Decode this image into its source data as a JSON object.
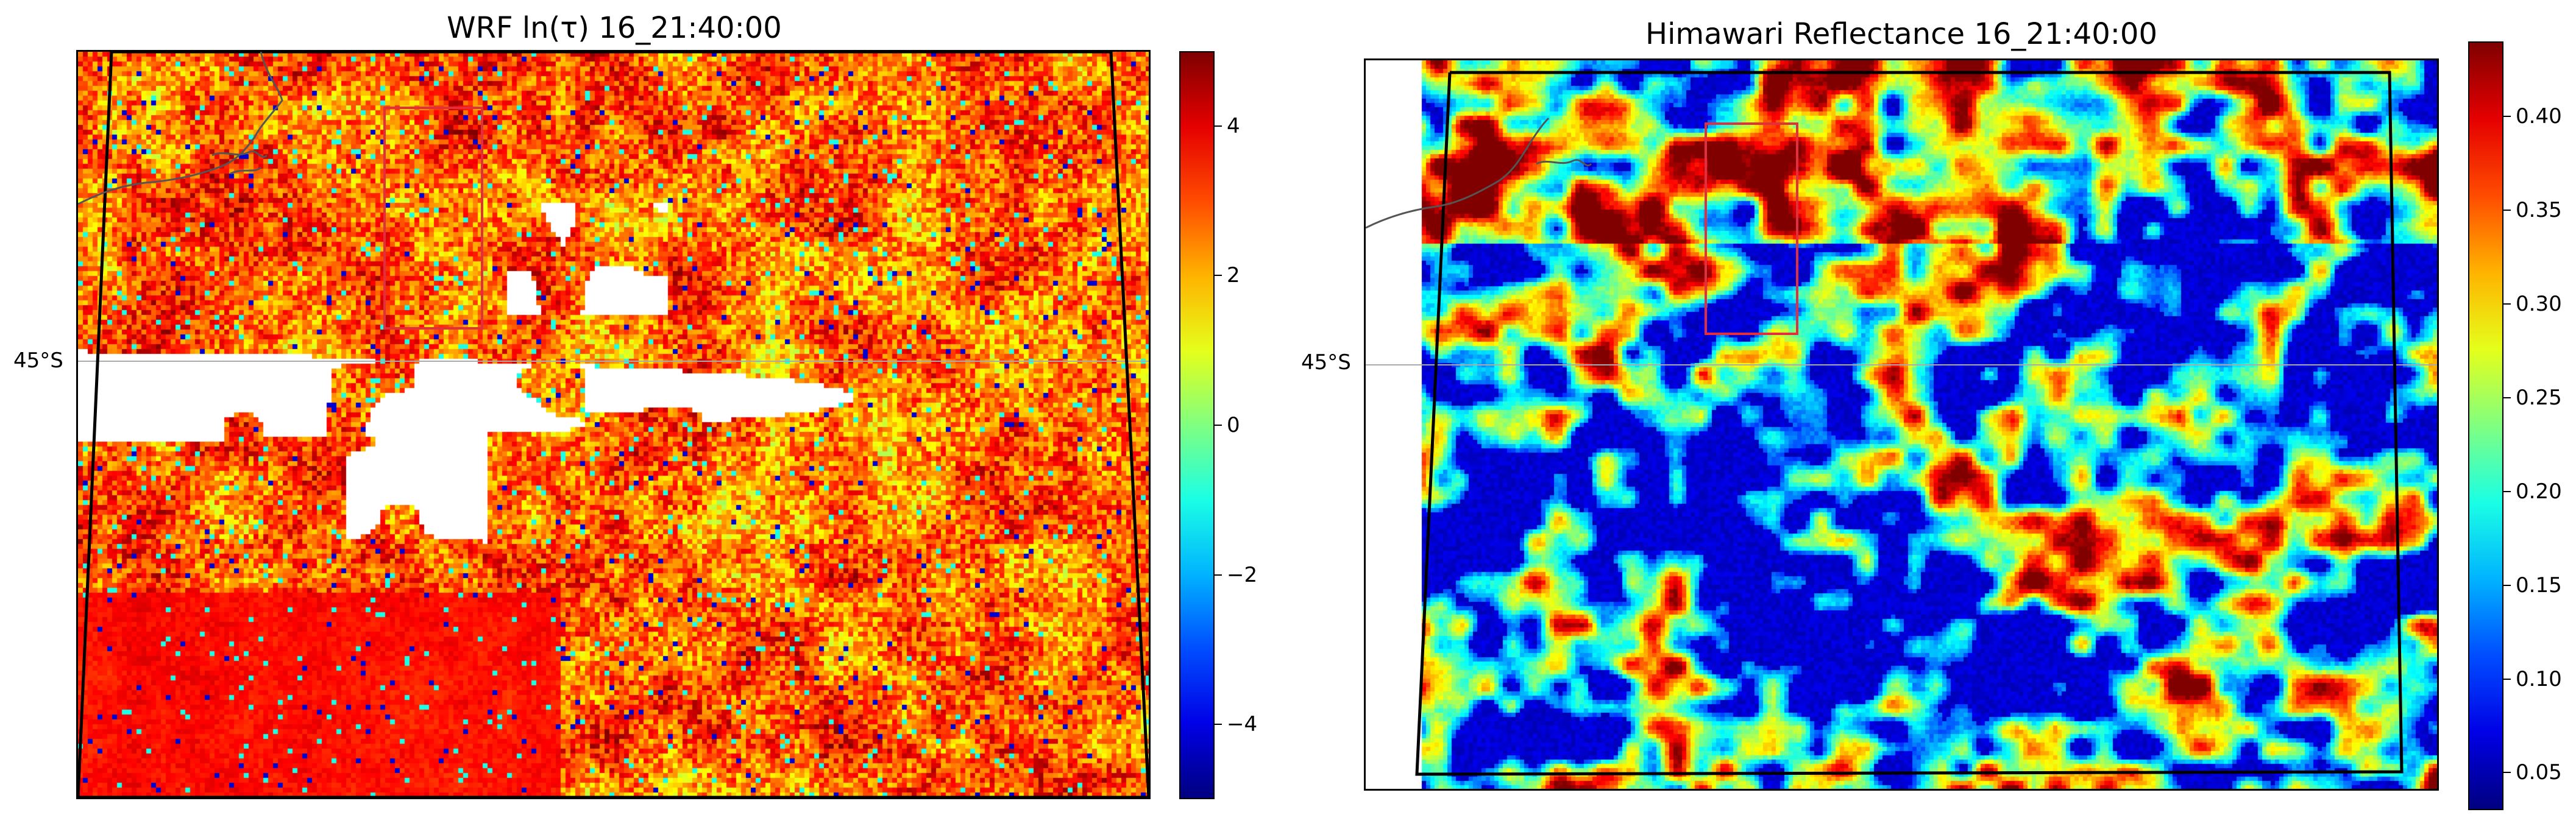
{
  "panels": [
    {
      "title": "WRF ln(τ) 16_21:40:00",
      "lat_label": "45°S",
      "colorbar": {
        "colormap": "jet",
        "min": -5,
        "max": 5,
        "ticks": [
          "4",
          "2",
          "0",
          "−2",
          "−4"
        ]
      }
    },
    {
      "title": "Himawari Reflectance 16_21:40:00",
      "lat_label": "45°S",
      "colorbar": {
        "colormap": "jet",
        "min": 0.03,
        "max": 0.44,
        "ticks": [
          "0.40",
          "0.35",
          "0.30",
          "0.25",
          "0.20",
          "0.15",
          "0.10",
          "0.05"
        ]
      }
    }
  ]
}
